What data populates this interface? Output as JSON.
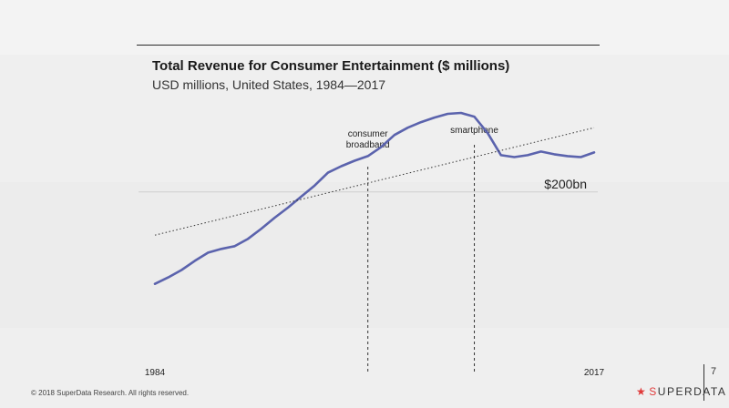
{
  "slide": {
    "footer": "© 2018 SuperData Research. All rights reserved.",
    "brand": {
      "first_letter": "S",
      "rest": "UPERDATA"
    },
    "page_number": "7"
  },
  "chart_data": {
    "type": "line",
    "title": "Total Revenue for Consumer Entertainment ($ millions)",
    "subtitle": "USD millions, United States, 1984—2017",
    "x_range": [
      1984,
      2017
    ],
    "y_range_millions": [
      60000,
      290000
    ],
    "x_tick_labels": [
      {
        "label": "1984",
        "x": 1984
      },
      {
        "label": "2017",
        "x": 2017
      }
    ],
    "reference_line": {
      "value": 200000,
      "label": "$200bn"
    },
    "annotations": [
      {
        "label_lines": [
          "consumer",
          "broadband"
        ],
        "x": 2000
      },
      {
        "label_lines": [
          "smartphone"
        ],
        "x": 2008
      }
    ],
    "series": [
      {
        "color": "#5b63ad",
        "points": [
          [
            1984,
            100000
          ],
          [
            1985,
            107000
          ],
          [
            1986,
            115000
          ],
          [
            1987,
            125000
          ],
          [
            1988,
            134000
          ],
          [
            1989,
            138000
          ],
          [
            1990,
            141000
          ],
          [
            1991,
            149000
          ],
          [
            1992,
            160000
          ],
          [
            1993,
            172000
          ],
          [
            1994,
            183000
          ],
          [
            1995,
            195000
          ],
          [
            1996,
            207000
          ],
          [
            1997,
            221000
          ],
          [
            1998,
            228000
          ],
          [
            1999,
            234000
          ],
          [
            2000,
            239000
          ],
          [
            2001,
            249000
          ],
          [
            2002,
            262000
          ],
          [
            2003,
            270000
          ],
          [
            2004,
            276000
          ],
          [
            2005,
            281000
          ],
          [
            2006,
            285000
          ],
          [
            2007,
            286000
          ],
          [
            2008,
            282000
          ],
          [
            2009,
            264000
          ],
          [
            2010,
            240000
          ],
          [
            2011,
            238000
          ],
          [
            2012,
            240000
          ],
          [
            2013,
            244000
          ],
          [
            2014,
            241000
          ],
          [
            2015,
            239000
          ],
          [
            2016,
            238000
          ],
          [
            2017,
            243000
          ]
        ]
      },
      {
        "style": "dotted",
        "color": "#333333",
        "points": [
          [
            1984,
            153000
          ],
          [
            2017,
            270000
          ]
        ]
      }
    ]
  }
}
